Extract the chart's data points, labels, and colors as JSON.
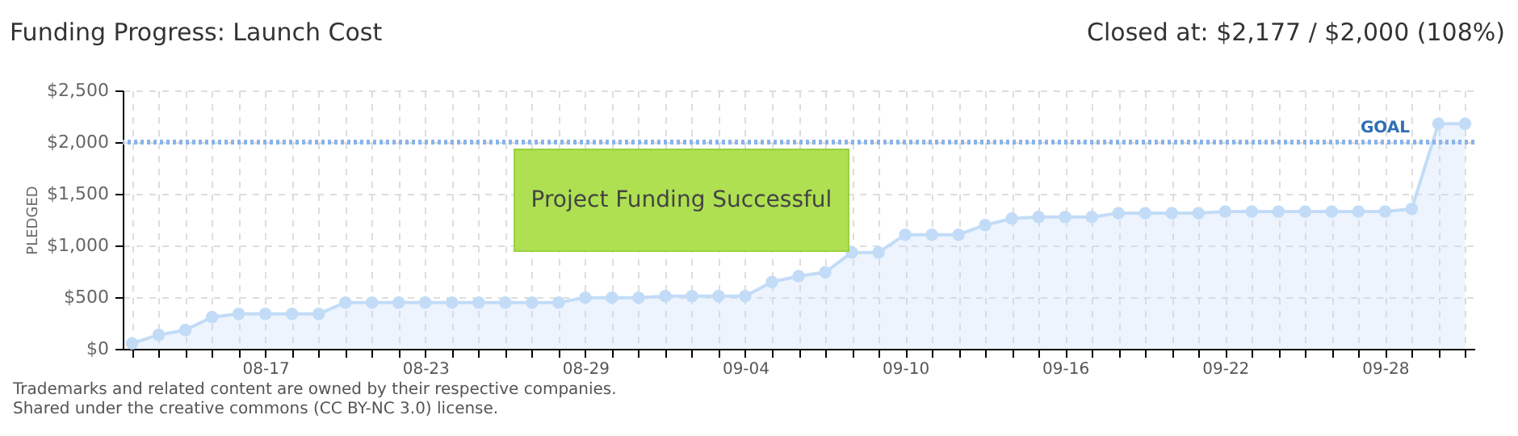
{
  "chart_data": {
    "type": "area",
    "title": "Funding Progress: Launch Cost",
    "subtitle": "Closed at: $2,177 / $2,000 (108%)",
    "ylabel": "PLEDGED",
    "categories": [
      null,
      null,
      null,
      null,
      null,
      "08-17",
      null,
      null,
      null,
      null,
      null,
      "08-23",
      null,
      null,
      null,
      null,
      null,
      "08-29",
      null,
      null,
      null,
      null,
      null,
      "09-04",
      null,
      null,
      null,
      null,
      null,
      "09-10",
      null,
      null,
      null,
      null,
      null,
      "09-16",
      null,
      null,
      null,
      null,
      null,
      "09-22",
      null,
      null,
      null,
      null,
      null,
      "09-28",
      null,
      null,
      null
    ],
    "series": [
      {
        "color": "#c2dcf7",
        "values": [
          52,
          135,
          182,
          307,
          338,
          338,
          338,
          338,
          448,
          448,
          448,
          448,
          448,
          448,
          448,
          448,
          448,
          495,
          495,
          495,
          510,
          510,
          510,
          510,
          646,
          703,
          740,
          932,
          932,
          1104,
          1104,
          1104,
          1198,
          1260,
          1276,
          1276,
          1276,
          1313,
          1313,
          1313,
          1313,
          1328,
          1328,
          1328,
          1328,
          1328,
          1328,
          1328,
          1354,
          2177,
          2177
        ]
      }
    ],
    "ylim": [
      0,
      2500
    ],
    "yticks": [
      {
        "value": 0,
        "label": "$0"
      },
      {
        "value": 500,
        "label": "$500"
      },
      {
        "value": 1000,
        "label": "$1,000"
      },
      {
        "value": 1500,
        "label": "$1,500"
      },
      {
        "value": 2000,
        "label": "$2,000"
      },
      {
        "value": 2500,
        "label": "$2,500"
      }
    ],
    "ref_lines": [
      {
        "axis": "y",
        "value": 2000,
        "label": "GOAL",
        "color": "#8ab4e8",
        "line_style": "dotted"
      }
    ],
    "grid": true,
    "marker": "circle",
    "annotations": [
      "Project Funding Successful",
      "Trademarks and related content are owned by their respective companies.",
      "Shared under the creative commons (CC BY-NC 3.0) license."
    ]
  }
}
